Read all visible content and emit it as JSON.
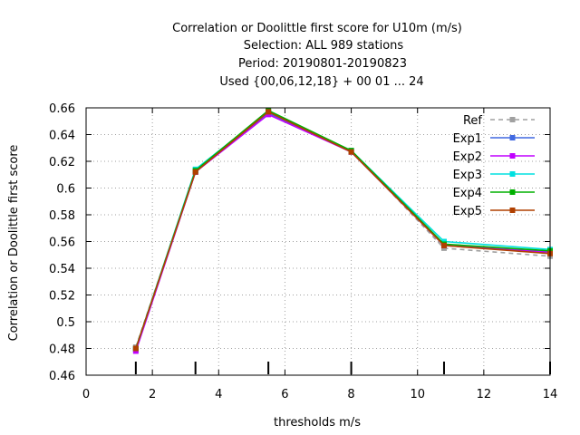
{
  "chart_data": {
    "type": "line",
    "title_lines": [
      "Correlation or Doolittle first score  for U10m (m/s)",
      "Selection: ALL    989 stations",
      "Period: 20190801-20190823",
      "Used {00,06,12,18} + 00 01 ... 24"
    ],
    "xlabel": "thresholds m/s",
    "ylabel": "Correlation or Doolittle first score",
    "xlim": [
      0,
      14
    ],
    "ylim": [
      0.46,
      0.66
    ],
    "x_ticks": [
      0,
      2,
      4,
      6,
      8,
      10,
      12,
      14
    ],
    "y_ticks": [
      0.46,
      0.48,
      0.5,
      0.52,
      0.54,
      0.56,
      0.58,
      0.6,
      0.62,
      0.64,
      0.66
    ],
    "x_tick_labels": [
      "0",
      "2",
      "4",
      "6",
      "8",
      "10",
      "12",
      "14"
    ],
    "y_tick_labels": [
      "0.46",
      "0.48",
      "0.5",
      "0.52",
      "0.54",
      "0.56",
      "0.58",
      "0.6",
      "0.62",
      "0.64",
      "0.66"
    ],
    "grid": true,
    "legend_position": "top-right",
    "x": [
      1.5,
      3.3,
      5.5,
      8.0,
      10.8,
      14.0
    ],
    "series": [
      {
        "name": "Ref",
        "color": "#a0a0a0",
        "dashed": true,
        "values": [
          0.481,
          0.613,
          0.657,
          0.628,
          0.555,
          0.549
        ]
      },
      {
        "name": "Exp1",
        "color": "#4169e1",
        "dashed": false,
        "values": [
          0.479,
          0.612,
          0.656,
          0.627,
          0.557,
          0.552
        ]
      },
      {
        "name": "Exp2",
        "color": "#c000ff",
        "dashed": false,
        "values": [
          0.478,
          0.612,
          0.655,
          0.627,
          0.557,
          0.552
        ]
      },
      {
        "name": "Exp3",
        "color": "#00e0e0",
        "dashed": false,
        "values": [
          0.48,
          0.614,
          0.657,
          0.628,
          0.56,
          0.554
        ]
      },
      {
        "name": "Exp4",
        "color": "#00b000",
        "dashed": false,
        "values": [
          0.48,
          0.613,
          0.658,
          0.628,
          0.558,
          0.553
        ]
      },
      {
        "name": "Exp5",
        "color": "#b04000",
        "dashed": false,
        "values": [
          0.48,
          0.612,
          0.657,
          0.627,
          0.557,
          0.551
        ]
      }
    ]
  }
}
